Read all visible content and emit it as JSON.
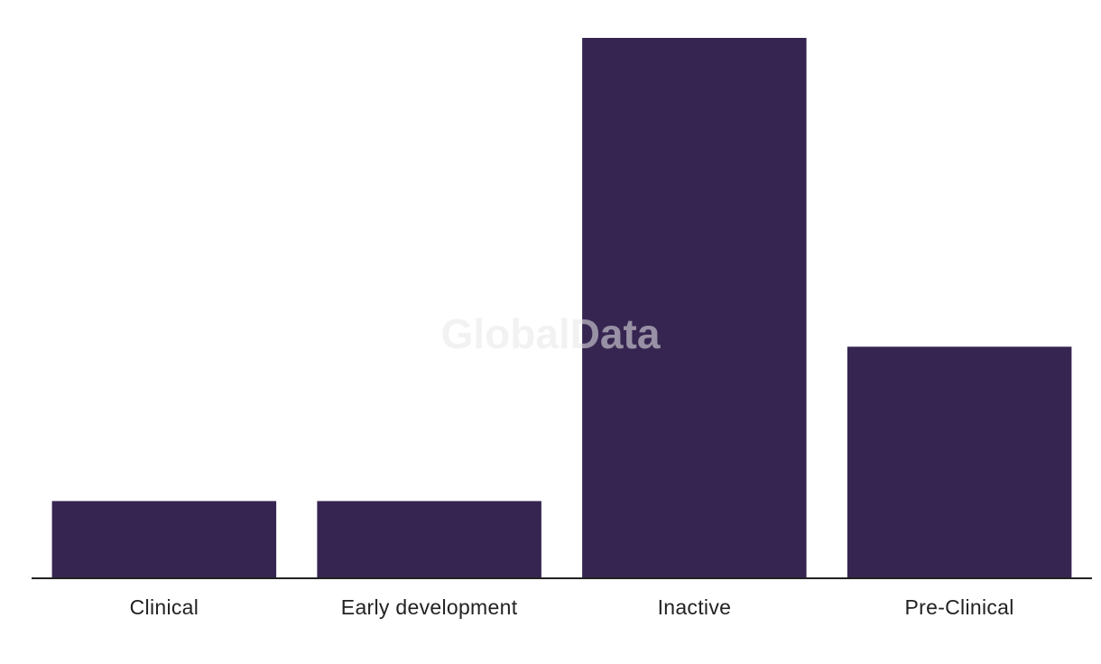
{
  "watermark": "GlobalData",
  "chart_data": {
    "type": "bar",
    "categories": [
      "Clinical",
      "Early development",
      "Inactive",
      "Pre-Clinical"
    ],
    "values": [
      1,
      1,
      7,
      3
    ],
    "ylim": [
      0,
      7
    ],
    "title": "",
    "xlabel": "",
    "ylabel": "",
    "grid": false,
    "bar_color": "#362551",
    "axis_color": "#222222"
  }
}
